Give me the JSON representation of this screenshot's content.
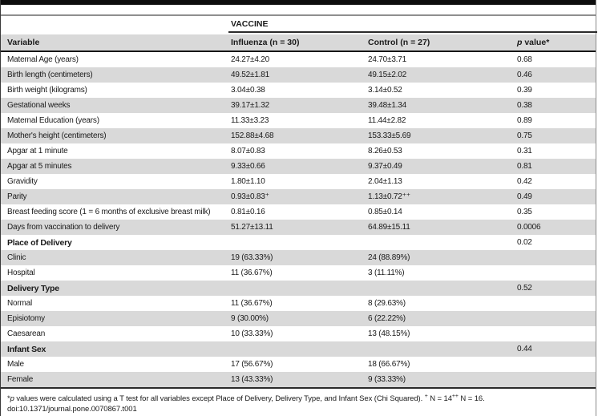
{
  "colors": {
    "stripe_gray": "#d9d9d9",
    "rule_black": "#161616",
    "top_bar": "#0d0d0d"
  },
  "table": {
    "spanner_label": "VACCINE",
    "columns": {
      "variable": "Variable",
      "influenza": "Influenza (n = 30)",
      "control": "Control (n = 27)",
      "p_italic": "p",
      "p_rest": " value*"
    },
    "rows": [
      {
        "variable": "Maternal Age (years)",
        "influenza": "24.27±4.20",
        "control": "24.70±3.71",
        "p": "0.68",
        "bold": false
      },
      {
        "variable": "Birth length (centimeters)",
        "influenza": "49.52±1.81",
        "control": "49.15±2.02",
        "p": "0.46",
        "bold": false
      },
      {
        "variable": "Birth weight (kilograms)",
        "influenza": "3.04±0.38",
        "control": "3.14±0.52",
        "p": "0.39",
        "bold": false
      },
      {
        "variable": "Gestational weeks",
        "influenza": "39.17±1.32",
        "control": "39.48±1.34",
        "p": "0.38",
        "bold": false
      },
      {
        "variable": "Maternal Education (years)",
        "influenza": "11.33±3.23",
        "control": "11.44±2.82",
        "p": "0.89",
        "bold": false
      },
      {
        "variable": "Mother's height (centimeters)",
        "influenza": "152.88±4.68",
        "control": "153.33±5.69",
        "p": "0.75",
        "bold": false
      },
      {
        "variable": "Apgar at 1 minute",
        "influenza": "8.07±0.83",
        "control": "8.26±0.53",
        "p": "0.31",
        "bold": false
      },
      {
        "variable": "Apgar at 5 minutes",
        "influenza": "9.33±0.66",
        "control": "9.37±0.49",
        "p": "0.81",
        "bold": false
      },
      {
        "variable": "Gravidity",
        "influenza": "1.80±1.10",
        "control": "2.04±1.13",
        "p": "0.42",
        "bold": false
      },
      {
        "variable": "Parity",
        "influenza": "0.93±0.83⁺",
        "control": "1.13±0.72⁺⁺",
        "p": "0.49",
        "bold": false
      },
      {
        "variable": "Breast feeding score (1 = 6 months of exclusive breast milk)",
        "influenza": "0.81±0.16",
        "control": "0.85±0.14",
        "p": "0.35",
        "bold": false
      },
      {
        "variable": "Days from vaccination to delivery",
        "influenza": "51.27±13.11",
        "control": "64.89±15.11",
        "p": "0.0006",
        "bold": false
      },
      {
        "variable": "Place of Delivery",
        "influenza": "",
        "control": "",
        "p": "0.02",
        "bold": true
      },
      {
        "variable": "Clinic",
        "influenza": "19 (63.33%)",
        "control": "24 (88.89%)",
        "p": "",
        "bold": false
      },
      {
        "variable": "Hospital",
        "influenza": "11 (36.67%)",
        "control": "3 (11.11%)",
        "p": "",
        "bold": false
      },
      {
        "variable": "Delivery Type",
        "influenza": "",
        "control": "",
        "p": "0.52",
        "bold": true
      },
      {
        "variable": "Normal",
        "influenza": "11 (36.67%)",
        "control": "8 (29.63%)",
        "p": "",
        "bold": false
      },
      {
        "variable": "Episiotomy",
        "influenza": "9 (30.00%)",
        "control": "6 (22.22%)",
        "p": "",
        "bold": false
      },
      {
        "variable": "Caesarean",
        "influenza": "10 (33.33%)",
        "control": "13 (48.15%)",
        "p": "",
        "bold": false
      },
      {
        "variable": "Infant Sex",
        "influenza": "",
        "control": "",
        "p": "0.44",
        "bold": true
      },
      {
        "variable": "Male",
        "influenza": "17 (56.67%)",
        "control": "18 (66.67%)",
        "p": "",
        "bold": false
      },
      {
        "variable": "Female",
        "influenza": "13 (43.33%)",
        "control": "9 (33.33%)",
        "p": "",
        "bold": false
      }
    ]
  },
  "footnotes": {
    "star": "*",
    "p": "p",
    "text": " values were calculated using a T test for all variables except Place of Delivery, Delivery Type, and Infant Sex (Chi Squared). ",
    "sup1": "+",
    "n14": " N = 14",
    "sup2": "++",
    "n16": " N = 16.",
    "doi": "doi:10.1371/journal.pone.0070867.t001"
  }
}
